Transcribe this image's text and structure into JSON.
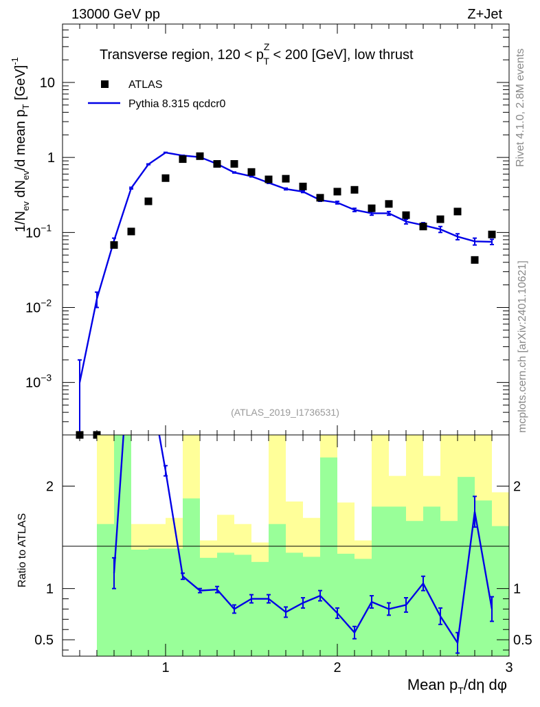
{
  "header": {
    "left": "13000 GeV pp",
    "right": "Z+Jet"
  },
  "side": {
    "rivet": "Rivet 4.1.0,  2.8M events",
    "mcplots": "mcplots.cern.ch [arXiv:2401.10621]"
  },
  "colors": {
    "mc": "#0000e6",
    "data": "#000000",
    "band_inner": "#99ff99",
    "band_outer": "#ffff99"
  },
  "chart_data": [
    {
      "type": "scatter",
      "title": "Transverse region, 120 < p_T^Z < 200 [GeV], low thrust",
      "ylabel": "1/N_ev dN_ev/d mean p_T [GeV]^-1",
      "yscale": "log",
      "xlim": [
        0.4,
        3.0
      ],
      "ylim": [
        0.0002,
        60
      ],
      "watermark": "(ATLAS_2019_I1736531)",
      "legend": {
        "placement": "top-left",
        "entries": [
          "ATLAS",
          "Pythia 8.315 qcdcr0"
        ]
      },
      "yticks": [
        {
          "v": 0.001,
          "base": "10",
          "exp": "−3"
        },
        {
          "v": 0.01,
          "base": "10",
          "exp": "−2"
        },
        {
          "v": 0.1,
          "base": "10",
          "exp": "−1"
        },
        {
          "v": 1,
          "base": "1",
          "exp": ""
        },
        {
          "v": 10,
          "base": "10",
          "exp": ""
        }
      ],
      "x": [
        0.5,
        0.6,
        0.7,
        0.8,
        0.9,
        1.0,
        1.1,
        1.2,
        1.3,
        1.4,
        1.5,
        1.6,
        1.7,
        1.8,
        1.9,
        2.0,
        2.1,
        2.2,
        2.3,
        2.4,
        2.5,
        2.6,
        2.7,
        2.8,
        2.9
      ],
      "series": [
        {
          "name": "ATLAS",
          "kind": "markers",
          "values": [
            0.0002,
            0.0002,
            0.068,
            0.103,
            0.26,
            0.53,
            0.95,
            1.04,
            0.82,
            0.82,
            0.64,
            0.51,
            0.52,
            0.41,
            0.29,
            0.35,
            0.37,
            0.21,
            0.24,
            0.17,
            0.12,
            0.15,
            0.19,
            0.043,
            0.094
          ]
        },
        {
          "name": "Pythia 8.315 qcdcr0",
          "kind": "line",
          "values": [
            0.001,
            0.013,
            0.078,
            0.39,
            0.81,
            1.16,
            1.06,
            1.01,
            0.82,
            0.63,
            0.56,
            0.46,
            0.38,
            0.35,
            0.27,
            0.25,
            0.2,
            0.18,
            0.18,
            0.14,
            0.125,
            0.11,
            0.088,
            0.076,
            0.075
          ],
          "err_lo": [
            0.001,
            0.003,
            0.006,
            0.01,
            0.01,
            0.01,
            0.01,
            0.01,
            0.01,
            0.01,
            0.01,
            0.01,
            0.01,
            0.01,
            0.01,
            0.01,
            0.01,
            0.01,
            0.01,
            0.01,
            0.01,
            0.01,
            0.008,
            0.008,
            0.006
          ],
          "err_hi": [
            0.001,
            0.003,
            0.006,
            0.01,
            0.01,
            0.01,
            0.01,
            0.01,
            0.01,
            0.01,
            0.01,
            0.01,
            0.01,
            0.01,
            0.01,
            0.01,
            0.01,
            0.01,
            0.01,
            0.01,
            0.01,
            0.01,
            0.008,
            0.008,
            0.006
          ]
        }
      ]
    },
    {
      "type": "line",
      "ylabel": "Ratio to ATLAS",
      "xlabel": "Mean p_T/dη dφ",
      "xlim": [
        0.4,
        3.0
      ],
      "ylim": [
        0.34,
        2.5
      ],
      "yticks": [
        0.5,
        1,
        2
      ],
      "xticks": [
        1,
        2,
        3
      ],
      "bins": [
        0.65,
        0.75,
        0.85,
        0.95,
        1.05,
        1.15,
        1.25,
        1.35,
        1.45,
        1.55,
        1.65,
        1.75,
        1.85,
        1.95,
        2.05,
        2.15,
        2.25,
        2.35,
        2.45,
        2.55,
        2.65,
        2.75,
        2.85,
        2.95
      ],
      "band_inner": [
        [
          0.34,
          1.63
        ],
        [
          0.34,
          2.5
        ],
        [
          0.34,
          1.38
        ],
        [
          0.34,
          1.39
        ],
        [
          0.34,
          1.39
        ],
        [
          0.34,
          1.88
        ],
        [
          0.34,
          1.3
        ],
        [
          0.34,
          1.35
        ],
        [
          0.34,
          1.33
        ],
        [
          0.34,
          1.26
        ],
        [
          0.34,
          1.63
        ],
        [
          0.34,
          1.35
        ],
        [
          0.34,
          1.31
        ],
        [
          0.34,
          2.28
        ],
        [
          0.34,
          1.34
        ],
        [
          0.34,
          1.29
        ],
        [
          0.34,
          1.8
        ],
        [
          0.34,
          1.8
        ],
        [
          0.34,
          1.66
        ],
        [
          0.34,
          1.8
        ],
        [
          0.34,
          1.66
        ],
        [
          0.34,
          2.09
        ],
        [
          0.34,
          1.86
        ],
        [
          0.34,
          1.61
        ]
      ],
      "band_outer": [
        [
          0.34,
          2.5
        ],
        [
          0.34,
          2.5
        ],
        [
          0.34,
          1.63
        ],
        [
          0.34,
          1.63
        ],
        [
          0.34,
          1.69
        ],
        [
          0.34,
          2.5
        ],
        [
          0.34,
          1.47
        ],
        [
          0.34,
          1.72
        ],
        [
          0.34,
          1.63
        ],
        [
          0.34,
          1.45
        ],
        [
          0.34,
          2.5
        ],
        [
          0.34,
          1.85
        ],
        [
          0.34,
          1.69
        ],
        [
          0.34,
          2.5
        ],
        [
          0.34,
          1.84
        ],
        [
          0.34,
          1.47
        ],
        [
          0.34,
          2.5
        ],
        [
          0.34,
          2.1
        ],
        [
          0.34,
          2.5
        ],
        [
          0.34,
          2.1
        ],
        [
          0.34,
          2.5
        ],
        [
          0.34,
          2.5
        ],
        [
          0.34,
          2.5
        ],
        [
          0.34,
          1.94
        ]
      ],
      "ratio_x": [
        0.7,
        0.8,
        0.9,
        1.0,
        1.1,
        1.2,
        1.3,
        1.4,
        1.5,
        1.6,
        1.7,
        1.8,
        1.9,
        2.0,
        2.1,
        2.2,
        2.3,
        2.4,
        2.5,
        2.6,
        2.7,
        2.8,
        2.9
      ],
      "ratio_y": [
        1.15,
        3.6,
        3.1,
        2.15,
        1.12,
        0.98,
        0.99,
        0.8,
        0.9,
        0.9,
        0.77,
        0.86,
        0.93,
        0.76,
        0.57,
        0.87,
        0.8,
        0.84,
        1.05,
        0.73,
        0.47,
        1.75,
        0.8
      ],
      "ratio_err": [
        0.15,
        0.05,
        0.05,
        0.05,
        0.03,
        0.02,
        0.03,
        0.04,
        0.04,
        0.04,
        0.05,
        0.05,
        0.05,
        0.05,
        0.06,
        0.06,
        0.06,
        0.07,
        0.07,
        0.08,
        0.1,
        0.15,
        0.12
      ]
    }
  ]
}
